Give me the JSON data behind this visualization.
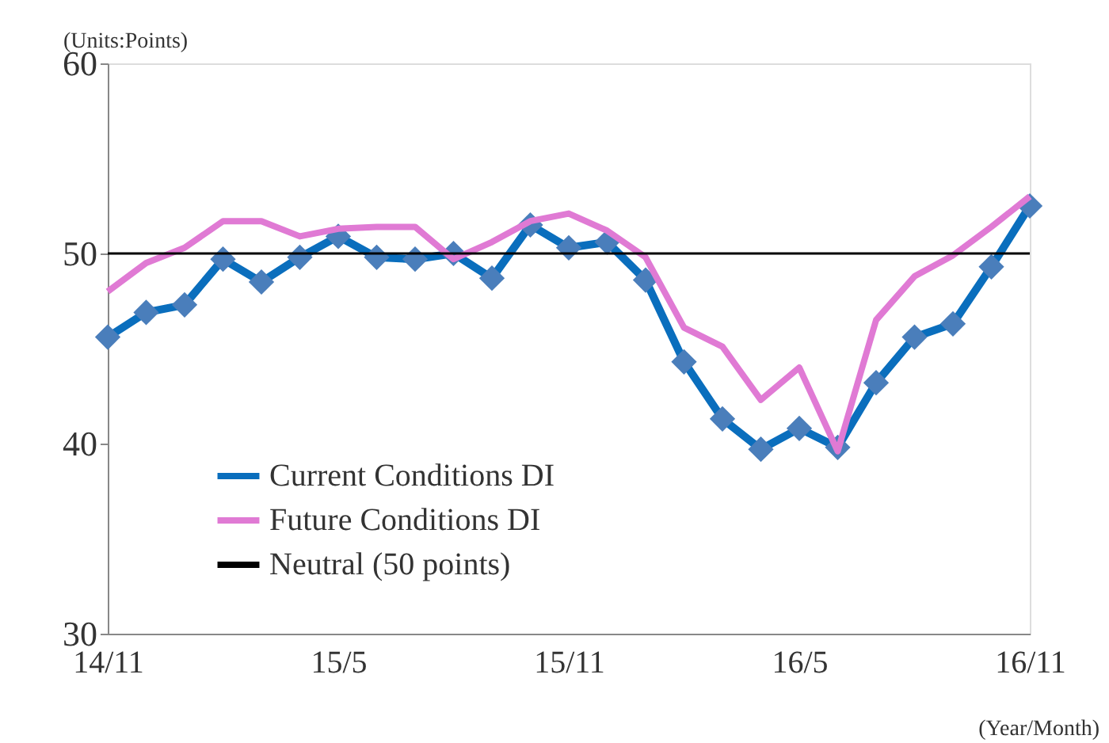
{
  "chart_data": {
    "type": "line",
    "categories": [
      "14/11",
      null,
      null,
      null,
      null,
      null,
      "15/5",
      null,
      null,
      null,
      null,
      null,
      "15/11",
      null,
      null,
      null,
      null,
      null,
      "16/5",
      null,
      null,
      null,
      null,
      null,
      "16/11"
    ],
    "series": [
      {
        "name": "Current Conditions DI",
        "color": "#0a6ebd",
        "marker": "diamond",
        "values": [
          45.6,
          46.9,
          47.3,
          49.7,
          48.5,
          49.8,
          50.9,
          49.8,
          49.7,
          50.0,
          48.7,
          51.5,
          50.3,
          50.6,
          48.6,
          44.3,
          41.3,
          39.7,
          40.8,
          39.8,
          43.2,
          45.6,
          46.3,
          49.3,
          52.5
        ]
      },
      {
        "name": "Future Conditions DI",
        "color": "#e07ad4",
        "marker": "none",
        "values": [
          48.0,
          49.5,
          50.3,
          51.7,
          51.7,
          50.9,
          51.3,
          51.4,
          51.4,
          49.7,
          50.6,
          51.7,
          52.1,
          51.2,
          49.8,
          46.1,
          45.1,
          42.3,
          44.0,
          39.6,
          46.5,
          48.8,
          49.9,
          51.4,
          53.0
        ]
      }
    ],
    "ref_lines": [
      {
        "axis": "y",
        "value": 50,
        "label": "Neutral (50 points)",
        "color": "#000000"
      }
    ],
    "ylim": [
      30,
      60
    ],
    "yticks": [
      30,
      40,
      50,
      60
    ],
    "grid": false,
    "legend": "bottom left",
    "annotations": [
      "(Units:Points)",
      "(Year/Month)"
    ]
  }
}
